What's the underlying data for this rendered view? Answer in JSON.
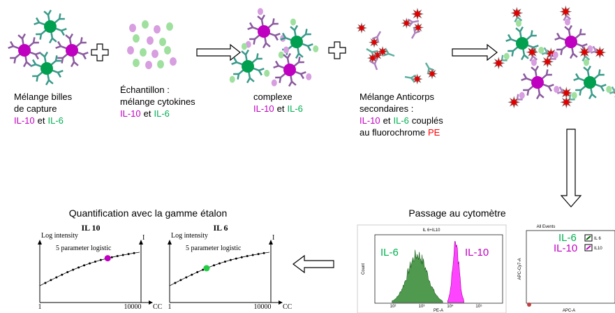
{
  "steps": [
    {
      "lines": [
        [
          {
            "text": "Mélange billes"
          }
        ],
        [
          {
            "text": "de capture"
          }
        ],
        [
          {
            "text": "IL-10",
            "color": "#c000c0"
          },
          {
            "text": "et"
          },
          {
            "text": "IL-6",
            "color": "#00b050"
          }
        ]
      ]
    },
    {
      "lines": [
        [
          {
            "text": "Échantillon :"
          }
        ],
        [
          {
            "text": "mélange cytokines"
          }
        ],
        [
          {
            "text": "IL-10",
            "color": "#c000c0"
          },
          {
            "text": "et"
          },
          {
            "text": "IL-6",
            "color": "#00b050"
          }
        ]
      ]
    },
    {
      "lines": [
        [
          {
            "text": "complexe"
          }
        ],
        [
          {
            "text": "IL-10",
            "color": "#c000c0"
          },
          {
            "text": "et"
          },
          {
            "text": "IL-6",
            "color": "#00b050"
          }
        ]
      ]
    },
    {
      "lines": [
        [
          {
            "text": "Mélange  Anticorps"
          }
        ],
        [
          {
            "text": "secondaires :"
          }
        ],
        [
          {
            "text": "IL-10",
            "color": "#c000c0"
          },
          {
            "text": "et"
          },
          {
            "text": "IL-6",
            "color": "#00b050"
          },
          {
            "text": "couplés"
          }
        ],
        [
          {
            "text": "au fluorochrome"
          },
          {
            "text": "PE",
            "color": "#ff0000"
          }
        ]
      ]
    }
  ],
  "cytometry": {
    "title": "Passage au cytomètre",
    "histogram": {
      "title": "IL 6+IL10",
      "labels": [
        "IL-6",
        "IL-10"
      ],
      "y_label": "Count",
      "x_label": "PE-A",
      "x_ticks": [
        "10²",
        "10³",
        "10⁴",
        "10⁵"
      ]
    },
    "dot_plot": {
      "title": "All Events",
      "labels": [
        "IL-6",
        "IL-10"
      ],
      "gates": [
        "IL 6",
        "IL10"
      ],
      "y_label": "APC-Cy7-A",
      "x_label": "APC-A"
    }
  },
  "quantification": {
    "title": "Quantification avec la gamme étalon",
    "charts": [
      {
        "title": "IL 10",
        "y_label": "Log intensity",
        "curve_label": "5 parameter logistic",
        "x_min": "1",
        "x_max": "10000",
        "x_label": "CC",
        "top_label": "I"
      },
      {
        "title": "IL 6",
        "y_label": "Log intensity",
        "curve_label": "5 parameter logistic",
        "x_min": "1",
        "x_max": "10000",
        "x_label": "CC",
        "top_label": "I"
      }
    ]
  }
}
